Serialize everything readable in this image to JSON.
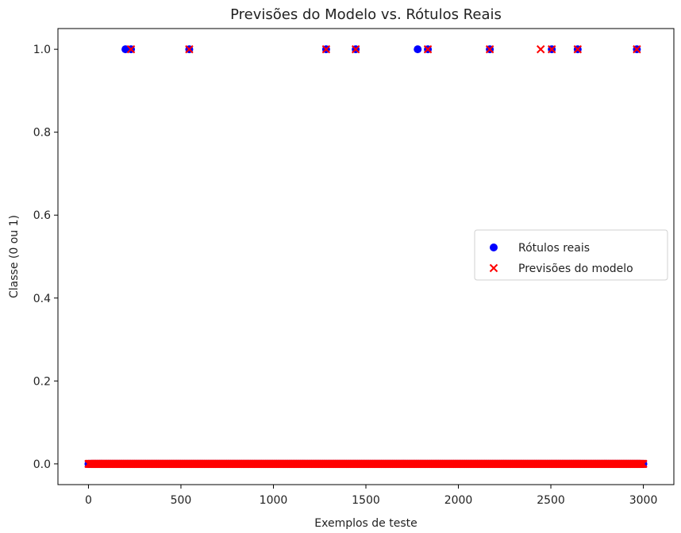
{
  "chart_data": {
    "type": "scatter",
    "title": "Previsões do Modelo vs. Rótulos Reais",
    "xlabel": "Exemplos de teste",
    "ylabel": "Classe (0 ou 1)",
    "xlim": [
      -165,
      3165
    ],
    "ylim": [
      -0.05,
      1.05
    ],
    "xticks": [
      0,
      500,
      1000,
      1500,
      2000,
      2500,
      3000
    ],
    "xtick_labels": [
      "0",
      "500",
      "1000",
      "1500",
      "2000",
      "2500",
      "3000"
    ],
    "yticks": [
      0.0,
      0.2,
      0.4,
      0.6,
      0.8,
      1.0
    ],
    "ytick_labels": [
      "0.0",
      "0.2",
      "0.4",
      "0.6",
      "0.8",
      "1.0"
    ],
    "grid": false,
    "legend_position": "center-right",
    "series": [
      {
        "name": "Rótulos reais",
        "marker": "circle",
        "color": "#0000ff",
        "zero_class_x_range": [
          0,
          3000
        ],
        "zero_class_value": 0,
        "positive_x": [
          200,
          230,
          545,
          1285,
          1445,
          1780,
          1835,
          2170,
          2505,
          2645,
          2965
        ],
        "positive_value": 1
      },
      {
        "name": "Previsões do modelo",
        "marker": "x",
        "color": "#ff0000",
        "zero_class_x_range": [
          0,
          3000
        ],
        "zero_class_value": 0,
        "positive_x": [
          230,
          545,
          1285,
          1445,
          1835,
          2170,
          2445,
          2505,
          2645,
          2965
        ],
        "positive_value": 1
      }
    ]
  }
}
